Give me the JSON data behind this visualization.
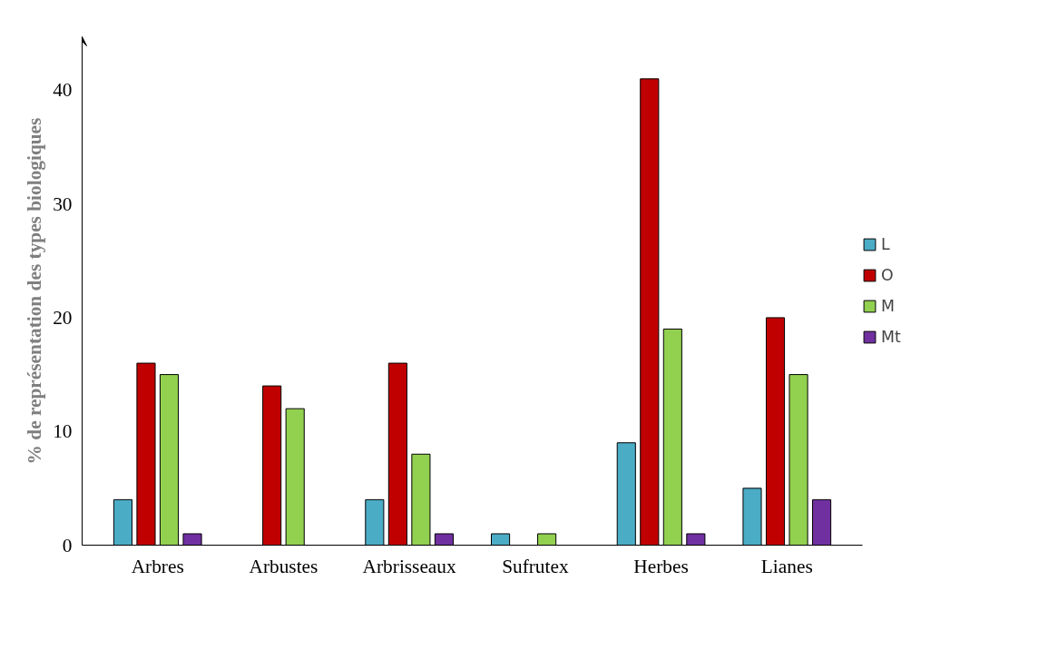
{
  "chart_data": {
    "type": "bar",
    "ylabel": "% de représentation des types biologiques",
    "categories": [
      "Arbres",
      "Arbustes",
      "Arbrisseaux",
      "Sufrutex",
      "Herbes",
      "Lianes"
    ],
    "series": [
      {
        "name": "L",
        "color": "#4bacc6",
        "values": [
          4,
          0,
          4,
          1,
          9,
          5
        ]
      },
      {
        "name": "O",
        "color": "#c00000",
        "values": [
          16,
          14,
          16,
          0,
          41,
          20
        ]
      },
      {
        "name": "M",
        "color": "#92d050",
        "values": [
          15,
          12,
          8,
          1,
          19,
          15
        ]
      },
      {
        "name": "Mt",
        "color": "#7030a0",
        "values": [
          1,
          0,
          1,
          0,
          1,
          4
        ]
      }
    ],
    "ylim": [
      0,
      44.7
    ],
    "yticks": [
      0,
      10,
      20,
      30,
      40
    ],
    "grid": false,
    "legend": "right"
  }
}
